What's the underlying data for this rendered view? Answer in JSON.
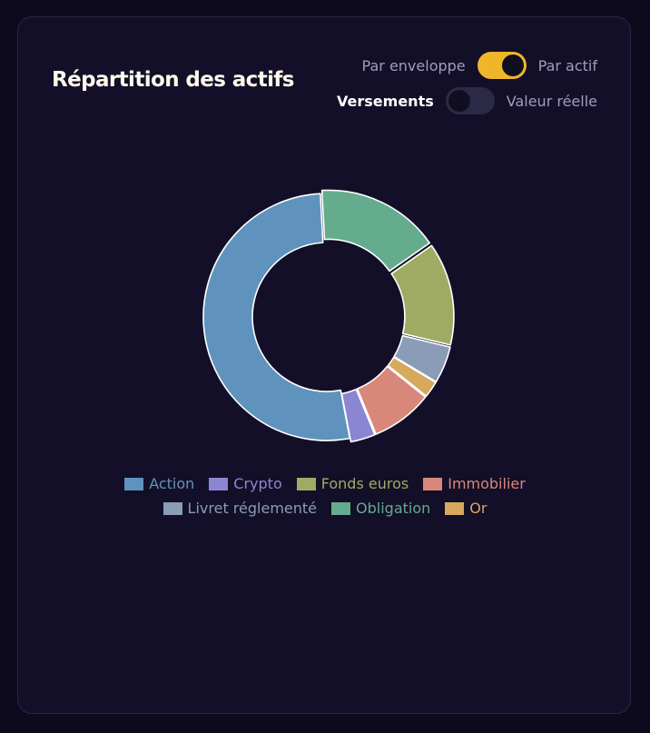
{
  "title": "Répartition des actifs",
  "toggles": {
    "row1": {
      "left": "Par enveloppe",
      "right": "Par actif",
      "on": true
    },
    "row2": {
      "left": "Versements",
      "right": "Valeur réelle",
      "on": false
    }
  },
  "chart_data": {
    "type": "pie",
    "donut": true,
    "title": "",
    "series": [
      {
        "name": "Action",
        "value": 48.5,
        "color": "#5f93bd"
      },
      {
        "name": "Crypto",
        "value": 3.0,
        "color": "#8b86d2"
      },
      {
        "name": "Fonds euros",
        "value": 12.5,
        "color": "#9fab63"
      },
      {
        "name": "Immobilier",
        "value": 7.5,
        "color": "#d8887a"
      },
      {
        "name": "Livret réglementé",
        "value": 4.5,
        "color": "#8a9cb6"
      },
      {
        "name": "Obligation",
        "value": 15.0,
        "color": "#65ab8d"
      },
      {
        "name": "Or",
        "value": 2.0,
        "color": "#d6a95c"
      }
    ],
    "legend_position": "bottom"
  }
}
